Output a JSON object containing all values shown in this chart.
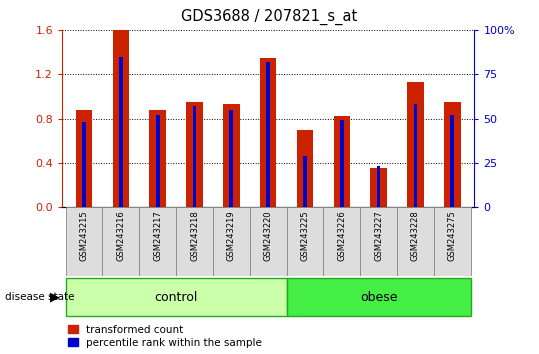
{
  "title": "GDS3688 / 207821_s_at",
  "samples": [
    "GSM243215",
    "GSM243216",
    "GSM243217",
    "GSM243218",
    "GSM243219",
    "GSM243220",
    "GSM243225",
    "GSM243226",
    "GSM243227",
    "GSM243228",
    "GSM243275"
  ],
  "red_values": [
    0.88,
    1.6,
    0.88,
    0.95,
    0.93,
    1.35,
    0.7,
    0.82,
    0.35,
    1.13,
    0.95
  ],
  "blue_values": [
    48,
    85,
    52,
    57,
    55,
    82,
    29,
    49,
    23,
    58,
    52
  ],
  "red_color": "#cc2200",
  "blue_color": "#0000cc",
  "left_ylim": [
    0,
    1.6
  ],
  "right_ylim": [
    0,
    100
  ],
  "left_yticks": [
    0,
    0.4,
    0.8,
    1.2,
    1.6
  ],
  "right_yticks": [
    0,
    25,
    50,
    75,
    100
  ],
  "right_yticklabels": [
    "0",
    "25",
    "50",
    "75",
    "100%"
  ],
  "control_count": 6,
  "obese_count": 5,
  "control_label": "control",
  "obese_label": "obese",
  "control_color": "#ccffaa",
  "obese_color": "#44ee44",
  "label_color_left": "#cc2200",
  "label_color_right": "#0000cc",
  "red_bar_width": 0.45,
  "blue_bar_width": 0.1,
  "bg_color": "#dddddd",
  "disease_state_label": "disease state",
  "legend_red": "transformed count",
  "legend_blue": "percentile rank within the sample"
}
